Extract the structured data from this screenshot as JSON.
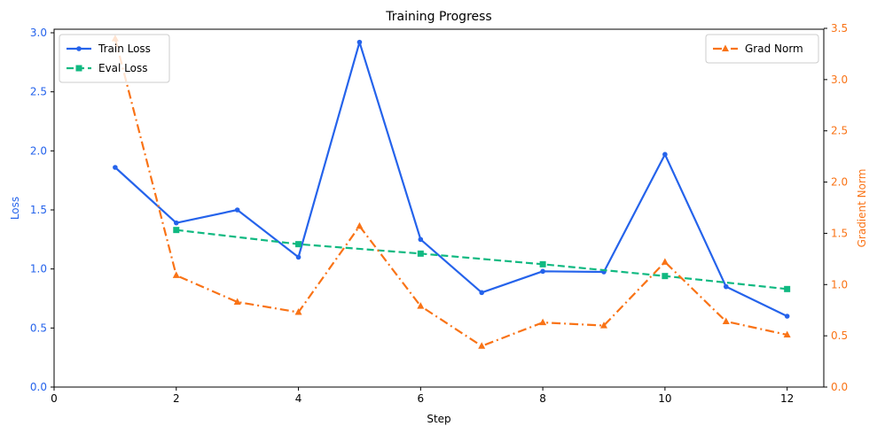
{
  "chart_data": {
    "type": "line",
    "title": "Training Progress",
    "xlabel": "Step",
    "ylabel": "Loss",
    "ylabel_right": "Gradient Norm",
    "xlim": [
      0,
      12.6
    ],
    "ylim": [
      0,
      3.03
    ],
    "ylim_right": [
      0,
      3.5
    ],
    "x_ticks": [
      0,
      2,
      4,
      6,
      8,
      10,
      12
    ],
    "y_ticks": [
      0.0,
      0.5,
      1.0,
      1.5,
      2.0,
      2.5,
      3.0
    ],
    "y_ticks_right": [
      0.0,
      0.5,
      1.0,
      1.5,
      2.0,
      2.5,
      3.0,
      3.5
    ],
    "grid": false,
    "series": [
      {
        "name": "Train Loss",
        "axis": "left",
        "color": "#2563eb",
        "style": "solid",
        "marker": "circle",
        "x": [
          1,
          2,
          3,
          4,
          5,
          6,
          7,
          8,
          9,
          10,
          11,
          12
        ],
        "values": [
          1.86,
          1.39,
          1.5,
          1.1,
          2.92,
          1.25,
          0.8,
          0.98,
          0.975,
          1.97,
          0.85,
          0.6
        ]
      },
      {
        "name": "Eval Loss",
        "axis": "left",
        "color": "#10b981",
        "style": "dashed",
        "marker": "square",
        "x": [
          2,
          4,
          6,
          8,
          10,
          12
        ],
        "values": [
          1.33,
          1.21,
          1.13,
          1.04,
          0.94,
          0.83
        ]
      },
      {
        "name": "Grad Norm",
        "axis": "right",
        "color": "#f97316",
        "style": "dashdot",
        "marker": "triangle",
        "x": [
          1,
          2,
          3,
          4,
          5,
          6,
          7,
          8,
          9,
          10,
          11,
          12
        ],
        "values": [
          3.4,
          1.09,
          0.83,
          0.73,
          1.57,
          0.79,
          0.4,
          0.63,
          0.6,
          1.22,
          0.64,
          0.51
        ]
      }
    ],
    "legend_left": [
      "Train Loss",
      "Eval Loss"
    ],
    "legend_right": [
      "Grad Norm"
    ],
    "legend_position": "upper left / upper right"
  },
  "colors": {
    "left_axis": "#2563eb",
    "right_axis": "#f97316"
  }
}
